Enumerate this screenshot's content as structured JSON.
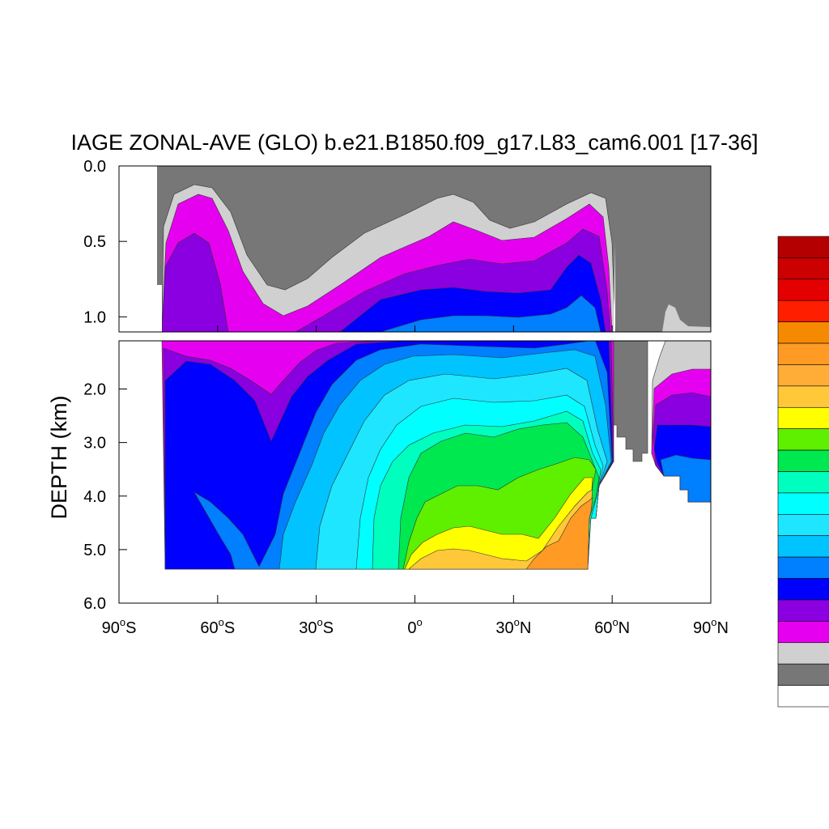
{
  "chart_data": {
    "type": "heatmap",
    "title": "IAGE ZONAL-AVE (GLO) b.e21.B1850.f09_g17.L83_cam6.001 [17-36]",
    "xlabel": "",
    "ylabel": "DEPTH (km)",
    "x_range": [
      -90,
      90
    ],
    "upper_panel": {
      "ylim": [
        0.0,
        1.1
      ],
      "ytick_values": [
        0.0,
        0.5,
        1.0
      ],
      "ytick_labels": [
        "0.0",
        "0.5",
        "1.0"
      ]
    },
    "lower_panel": {
      "ylim": [
        1.1,
        6.0
      ],
      "ytick_values": [
        2.0,
        3.0,
        4.0,
        5.0,
        6.0
      ],
      "ytick_labels": [
        "2.0",
        "3.0",
        "4.0",
        "5.0",
        "6.0"
      ]
    },
    "x_ticks": [
      {
        "value": -90,
        "deg": "90",
        "suffix": "S"
      },
      {
        "value": -60,
        "deg": "60",
        "suffix": "S"
      },
      {
        "value": -30,
        "deg": "30",
        "suffix": "S"
      },
      {
        "value": 0,
        "deg": "0",
        "suffix": ""
      },
      {
        "value": 30,
        "deg": "30",
        "suffix": "N"
      },
      {
        "value": 60,
        "deg": "60",
        "suffix": "N"
      },
      {
        "value": 90,
        "deg": "90",
        "suffix": "N"
      }
    ],
    "colorbar_colors": [
      "#b40000",
      "#cc0000",
      "#e40000",
      "#ff1e00",
      "#f58a00",
      "#ff9a25",
      "#ffad37",
      "#ffc839",
      "#ffff00",
      "#5ff000",
      "#00e850",
      "#00ffbe",
      "#00ffff",
      "#1ee6ff",
      "#00c3ff",
      "#007fff",
      "#0000ff",
      "#8b00e0",
      "#e600f0",
      "#d0d0d0",
      "#777777",
      "#ffffff"
    ],
    "region_levels": {
      "land": 21,
      "age_gray": 20,
      "age_lightgray": 19,
      "magenta": 18,
      "purple": 17,
      "blue": 16,
      "mid_blue": 15,
      "deep_sky": 14,
      "light_cyan": 13,
      "cyan": 12,
      "aquamarine": 11,
      "green": 10,
      "lime": 9,
      "yellow": 8,
      "gold": 7,
      "orange": 5
    },
    "grid": false,
    "legend": "right"
  }
}
